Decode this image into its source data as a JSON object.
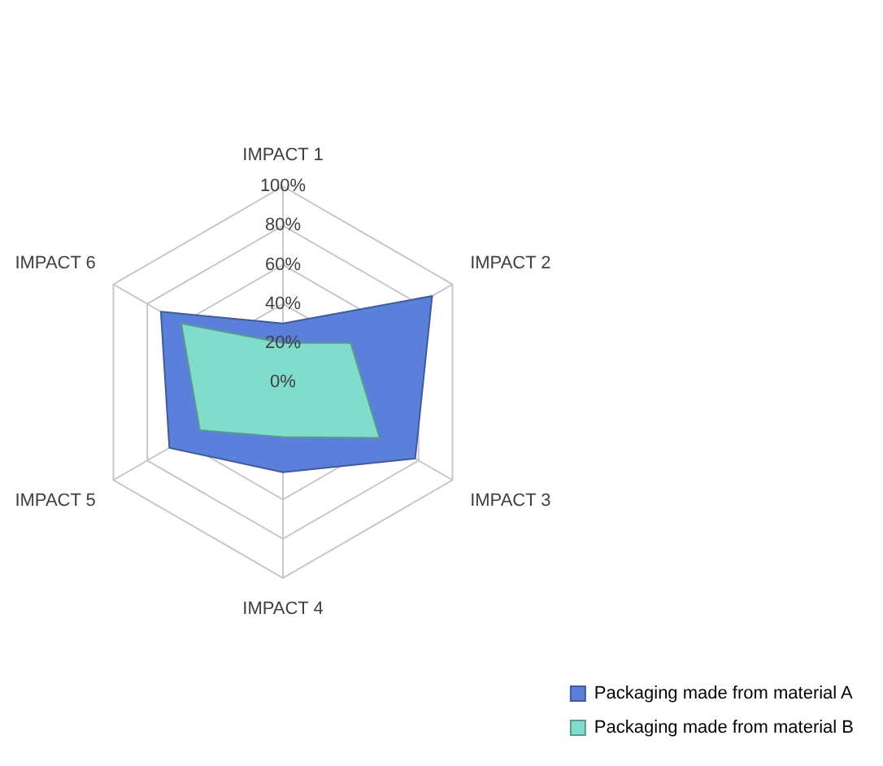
{
  "chart_data": {
    "type": "radar",
    "categories": [
      "IMPACT 1",
      "IMPACT 2",
      "IMPACT 3",
      "IMPACT 4",
      "IMPACT 5",
      "IMPACT 6"
    ],
    "series": [
      {
        "name": "Packaging made from material A",
        "color": "#5b80dc",
        "values": [
          30,
          88,
          78,
          46,
          67,
          72
        ]
      },
      {
        "name": "Packaging made from material B",
        "color": "#80dccb",
        "values": [
          20,
          40,
          57,
          28,
          49,
          60
        ]
      }
    ],
    "ylim": [
      0,
      100
    ],
    "yticks": [
      {
        "value": 0,
        "label": "0%"
      },
      {
        "value": 20,
        "label": "20%"
      },
      {
        "value": 40,
        "label": "40%"
      },
      {
        "value": 60,
        "label": "60%"
      },
      {
        "value": 80,
        "label": "80%"
      },
      {
        "value": 100,
        "label": "100%"
      }
    ],
    "grid": true,
    "legend": "bottom right",
    "marker": "none"
  }
}
